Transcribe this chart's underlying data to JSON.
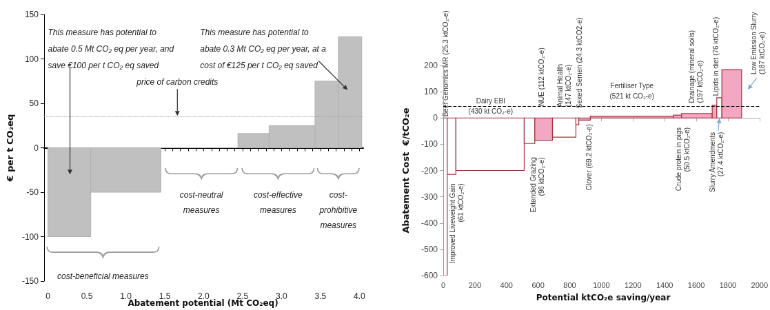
{
  "chart_data": [
    {
      "type": "histogram",
      "bins": [
        0,
        0.55,
        1.45,
        2.44,
        2.84,
        3.43,
        3.73,
        4.03
      ],
      "values": [
        -100,
        -50,
        0,
        16,
        25,
        75,
        125
      ],
      "color": "#c0c0c0",
      "xlim": [
        -0.05,
        4.05
      ],
      "ylim": [
        -150,
        150
      ],
      "xticks": [
        0,
        {
          "value": 0.1,
          "label": null
        },
        {
          "value": 0.2,
          "label": null
        },
        {
          "value": 0.3,
          "label": null
        },
        {
          "value": 0.4,
          "label": null
        },
        0.5,
        {
          "value": 0.6,
          "label": null
        },
        {
          "value": 0.7,
          "label": null
        },
        {
          "value": 0.8,
          "label": null
        },
        {
          "value": 0.9,
          "label": null
        },
        {
          "value": 1,
          "label": "1.0"
        },
        {
          "value": 1.1,
          "label": null
        },
        {
          "value": 1.2,
          "label": null
        },
        {
          "value": 1.3,
          "label": null
        },
        {
          "value": 1.4,
          "label": null
        },
        1.5,
        {
          "value": 1.6,
          "label": null
        },
        {
          "value": 1.7,
          "label": null
        },
        {
          "value": 1.8,
          "label": null
        },
        {
          "value": 1.9,
          "label": null
        },
        {
          "value": 2,
          "label": "2.0"
        },
        {
          "value": 2.1,
          "label": null
        },
        {
          "value": 2.2,
          "label": null
        },
        {
          "value": 2.3,
          "label": null
        },
        {
          "value": 2.4,
          "label": null
        },
        2.5,
        {
          "value": 2.6,
          "label": null
        },
        {
          "value": 2.7,
          "label": null
        },
        {
          "value": 2.8,
          "label": null
        },
        {
          "value": 2.9,
          "label": null
        },
        {
          "value": 3,
          "label": "3.0"
        },
        {
          "value": 3.1,
          "label": null
        },
        {
          "value": 3.2,
          "label": null
        },
        {
          "value": 3.3,
          "label": null
        },
        {
          "value": 3.4,
          "label": null
        },
        3.5,
        {
          "value": 3.6,
          "label": null
        },
        {
          "value": 3.7,
          "label": null
        },
        {
          "value": 3.8,
          "label": null
        },
        {
          "value": 3.9,
          "label": null
        },
        {
          "value": 4,
          "label": "4.0"
        }
      ],
      "yticks": [
        -150,
        -100,
        -50,
        0,
        50,
        100,
        150
      ],
      "xlabel": "Abatement potential (Mt CO₂eq)",
      "ylabel": "€ per t CO₂eq",
      "ref_lines": [
        {
          "axis": "y",
          "value": 35,
          "label": "price of carbon credits",
          "line_style": "dotted",
          "color": "#999999"
        }
      ],
      "annotations": [
        "This measure has potential to\nabate 0.5 Mt CO₂ eq per year, and\nsave €100 per t CO₂ eq saved",
        "This measure has potential to\nabate 0.3 Mt CO₂ eq per year, at a\ncost of €125 per t CO₂ eq saved",
        "cost-beneficial measures",
        "cost-neutral\nmeasures",
        "cost-effective\nmeasures",
        "cost-\nprohibitive\nmeasures"
      ]
    },
    {
      "type": "histogram",
      "bins": [
        0,
        25,
        80,
        512,
        579,
        691,
        839,
        857,
        930,
        1455,
        1507,
        1701,
        1730,
        1762,
        1887
      ],
      "values": [
        -600,
        -215,
        -200,
        -97,
        -85,
        -73,
        -26,
        -8,
        7,
        11,
        17,
        49,
        77,
        184
      ],
      "colors": [
        "#ffffff",
        "#ffffff",
        "#ffffff",
        "#ffffff",
        "#f2a7c3",
        "#ffffff",
        "#ffffff",
        "#f2a7c3",
        "#f2a7c3",
        "#f2a7c3",
        "#f2a7c3",
        "#f2a7c3",
        "#ffffff",
        "#f2a7c3"
      ],
      "xlim": [
        0,
        2000
      ],
      "ylim": [
        -600,
        200
      ],
      "xticks": [
        0,
        200,
        400,
        600,
        800,
        1000,
        1200,
        1400,
        1600,
        1800,
        2000
      ],
      "yticks": [
        -600,
        -500,
        -400,
        -300,
        -200,
        -100,
        0,
        100,
        200
      ],
      "xlabel": "Potential ktCO₂e saving/year",
      "ylabel": "Abatement Cost  €/tCO₂e",
      "ref_lines": [
        {
          "axis": "y",
          "value": 45,
          "line_style": "dashed",
          "color": "#000000"
        }
      ],
      "annotations": [
        {
          "text": "Beef Genomics MR (25.3 ktCO₂-e)",
          "x": 12,
          "y": 5
        },
        "Improved Liveweight Gain\n(61 ktCO₂-e)",
        {
          "text": "Dairy EBI\n(430 kt CO₂-e)",
          "x": 300,
          "y": 45
        },
        "Extended Grazing\n(96 ktCO₂-e)",
        {
          "text": "NUE (112 ktCO₂-e)",
          "x": 619,
          "y": 45
        },
        {
          "text": "Animal Health\n(147 ktCO₂-e)",
          "x": 733,
          "y": 42
        },
        {
          "text": "Sexed Semen (24.3 ktCO2-e)",
          "x": 858,
          "y": 37
        },
        "Clover (69.2 ktCO₂-e)",
        "Fertiliser Type\n(521 kt CO₂-e)",
        "Crude protein in pigs\n(50.5 ktCO₂-e)",
        {
          "text": "Drainage (mineral soils)\n(197 ktCO₂-e)",
          "x": 1567,
          "y": 57
        },
        "Slurry Amendments\n(27.4 ktCO₂-e)",
        {
          "text": "Lipids in diet (76 ktCO₂-e)",
          "x": 1718,
          "y": 84
        },
        "Low Emission Slurry\n(187 ktCO₂-e)"
      ]
    }
  ]
}
